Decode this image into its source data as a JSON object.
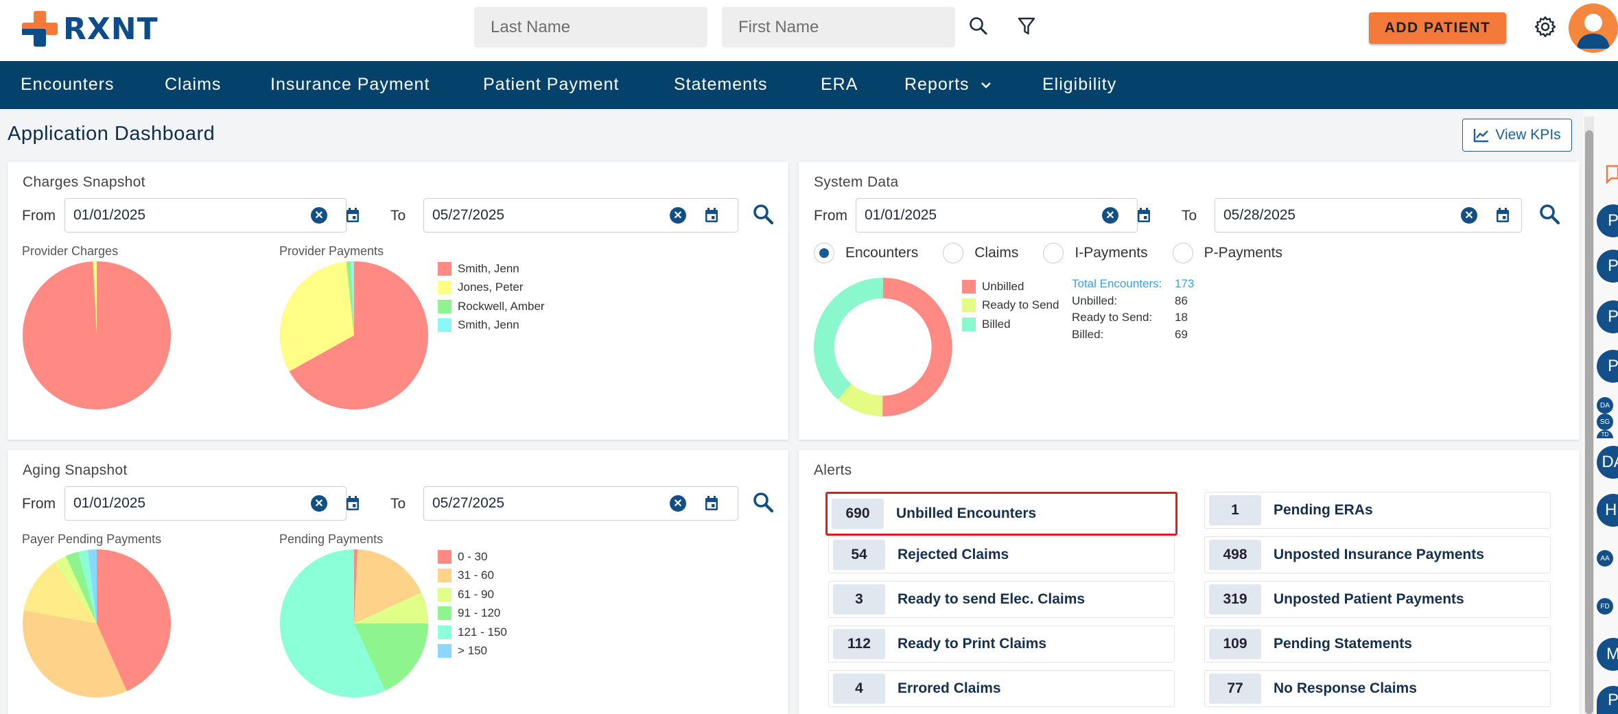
{
  "app": {
    "logo_text": "RXNT",
    "search": {
      "last_name_placeholder": "Last Name",
      "first_name_placeholder": "First Name"
    },
    "add_patient_label": "ADD PATIENT"
  },
  "nav": {
    "items": [
      "Encounters",
      "Claims",
      "Insurance Payment",
      "Patient Payment",
      "Statements",
      "ERA",
      "Reports",
      "Eligibility"
    ]
  },
  "page": {
    "title": "Application Dashboard",
    "view_kpis_label": "View KPIs"
  },
  "charges": {
    "title": "Charges Snapshot",
    "from_label": "From",
    "to_label": "To",
    "from": "01/01/2025",
    "to": "05/27/2025",
    "provider_charges_title": "Provider Charges",
    "provider_payments_title": "Provider Payments",
    "legend": [
      {
        "label": "Smith, Jenn",
        "color": "#ff8a84"
      },
      {
        "label": "Jones, Peter",
        "color": "#ffff88"
      },
      {
        "label": "Rockwell, Amber",
        "color": "#8ef58e"
      },
      {
        "label": "Smith, Jenn",
        "color": "#8cf7f5"
      }
    ]
  },
  "system": {
    "title": "System Data",
    "from_label": "From",
    "to_label": "To",
    "from": "01/01/2025",
    "to": "05/28/2025",
    "radios": [
      "Encounters",
      "Claims",
      "I-Payments",
      "P-Payments"
    ],
    "selected_radio": "Encounters",
    "legend": [
      {
        "label": "Unbilled",
        "color": "#ff8a84"
      },
      {
        "label": "Ready to Send",
        "color": "#e4fb84"
      },
      {
        "label": "Billed",
        "color": "#8af7cc"
      }
    ],
    "stats": [
      {
        "label": "Total Encounters:",
        "value": "173"
      },
      {
        "label": "Unbilled:",
        "value": "86"
      },
      {
        "label": "Ready to Send:",
        "value": "18"
      },
      {
        "label": "Billed:",
        "value": "69"
      }
    ]
  },
  "aging": {
    "title": "Aging Snapshot",
    "from_label": "From",
    "to_label": "To",
    "from": "01/01/2025",
    "to": "05/27/2025",
    "payer_pending_title": "Payer Pending Payments",
    "pending_title": "Pending Payments",
    "legend": [
      {
        "label": "0 - 30",
        "color": "#ff8a84"
      },
      {
        "label": "31 - 60",
        "color": "#ffd28a"
      },
      {
        "label": "61 - 90",
        "color": "#e0ff88"
      },
      {
        "label": "91 - 120",
        "color": "#8ef58e"
      },
      {
        "label": "121 - 150",
        "color": "#8affd8"
      },
      {
        "label": "> 150",
        "color": "#8ad8ff"
      }
    ]
  },
  "alerts": {
    "title": "Alerts",
    "left": [
      {
        "count": "690",
        "label": "Unbilled Encounters"
      },
      {
        "count": "54",
        "label": "Rejected Claims"
      },
      {
        "count": "3",
        "label": "Ready to send Elec. Claims"
      },
      {
        "count": "112",
        "label": "Ready to Print Claims"
      },
      {
        "count": "4",
        "label": "Errored Claims"
      }
    ],
    "right": [
      {
        "count": "1",
        "label": "Pending ERAs"
      },
      {
        "count": "498",
        "label": "Unposted Insurance Payments"
      },
      {
        "count": "319",
        "label": "Unposted Patient Payments"
      },
      {
        "count": "109",
        "label": "Pending Statements"
      },
      {
        "count": "77",
        "label": "No Response Claims"
      }
    ]
  },
  "side_bubbles": [
    "P",
    "P",
    "P",
    "P",
    "DA",
    "SG",
    "TD",
    "DA",
    "HI",
    "AA",
    "FD",
    "M",
    "P"
  ]
}
